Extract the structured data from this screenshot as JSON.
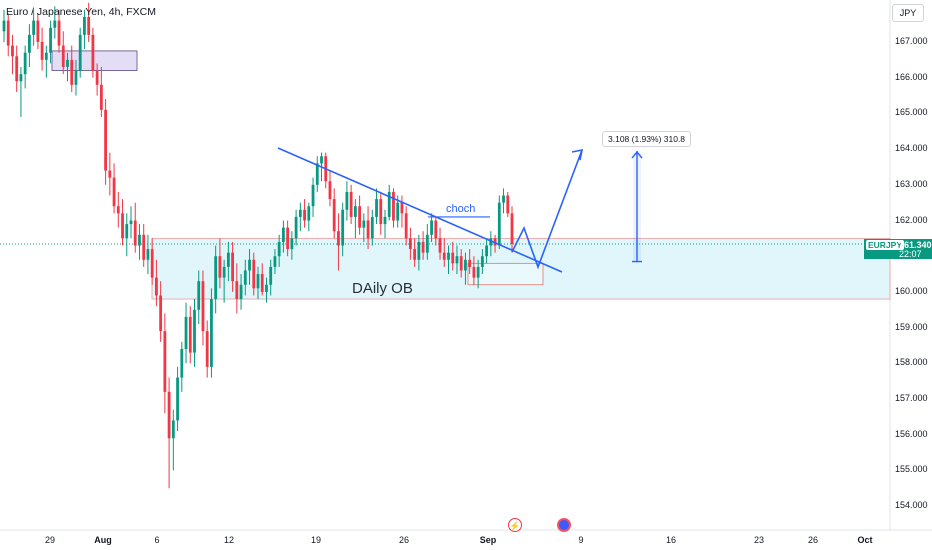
{
  "header": {
    "title": "Euro / Japanese Yen, 4h, FXCM",
    "currency": "JPY"
  },
  "chart_data": {
    "type": "candlestick",
    "x_labels": [
      "29",
      "Aug",
      "6",
      "12",
      "19",
      "26",
      "Sep",
      "9",
      "16",
      "23",
      "26",
      "Oct"
    ],
    "y_ticks": [
      "167.000",
      "166.000",
      "165.000",
      "164.000",
      "163.000",
      "162.000",
      "161.000",
      "160.000",
      "159.000",
      "158.000",
      "157.000",
      "156.000",
      "155.000",
      "154.000"
    ],
    "ylim": [
      153.88,
      168.2
    ],
    "last_price": {
      "symbol": "EURJPY",
      "value": "161.340",
      "countdown": "22:07"
    },
    "annotations": {
      "order_block": "DAily OB",
      "choch": "choch",
      "measure": "3.108 (1.93%) 310.8"
    },
    "candles": [
      [
        167.3,
        167.9,
        167.0,
        167.6
      ],
      [
        167.6,
        167.8,
        166.6,
        166.9
      ],
      [
        166.9,
        167.2,
        166.1,
        166.6
      ],
      [
        166.6,
        166.9,
        165.6,
        165.9
      ],
      [
        165.9,
        166.3,
        164.9,
        166.1
      ],
      [
        166.1,
        166.9,
        165.7,
        166.7
      ],
      [
        166.7,
        167.5,
        166.3,
        167.2
      ],
      [
        167.2,
        167.9,
        166.9,
        167.6
      ],
      [
        167.6,
        167.8,
        166.8,
        167.0
      ],
      [
        167.0,
        167.4,
        166.2,
        166.5
      ],
      [
        166.5,
        166.9,
        166.0,
        166.7
      ],
      [
        166.7,
        167.6,
        166.4,
        167.4
      ],
      [
        167.4,
        168.0,
        167.1,
        167.6
      ],
      [
        167.6,
        167.9,
        166.7,
        166.9
      ],
      [
        166.9,
        167.3,
        166.1,
        166.3
      ],
      [
        166.3,
        166.7,
        165.9,
        166.5
      ],
      [
        166.5,
        166.9,
        165.6,
        165.8
      ],
      [
        165.8,
        166.5,
        165.5,
        166.2
      ],
      [
        166.2,
        167.4,
        166.0,
        167.2
      ],
      [
        167.2,
        167.9,
        166.8,
        167.7
      ],
      [
        167.7,
        168.1,
        167.0,
        167.2
      ],
      [
        167.2,
        167.4,
        166.0,
        166.2
      ],
      [
        166.2,
        166.4,
        165.5,
        165.8
      ],
      [
        165.8,
        166.3,
        164.9,
        165.1
      ],
      [
        165.1,
        165.4,
        163.0,
        163.4
      ],
      [
        163.4,
        163.9,
        162.7,
        163.2
      ],
      [
        163.2,
        163.6,
        162.2,
        162.4
      ],
      [
        162.4,
        162.8,
        161.8,
        162.2
      ],
      [
        162.2,
        162.6,
        161.3,
        161.5
      ],
      [
        161.5,
        162.2,
        161.0,
        161.9
      ],
      [
        161.9,
        162.4,
        161.5,
        162.0
      ],
      [
        162.0,
        162.5,
        161.1,
        161.3
      ],
      [
        161.3,
        161.9,
        160.9,
        161.6
      ],
      [
        161.6,
        161.9,
        160.7,
        160.9
      ],
      [
        160.9,
        161.6,
        160.5,
        161.2
      ],
      [
        161.2,
        161.5,
        160.2,
        160.4
      ],
      [
        160.4,
        160.9,
        159.6,
        159.9
      ],
      [
        159.9,
        160.3,
        158.6,
        158.9
      ],
      [
        158.9,
        159.4,
        156.6,
        157.2
      ],
      [
        157.2,
        157.6,
        154.5,
        155.9
      ],
      [
        155.9,
        156.7,
        155.0,
        156.4
      ],
      [
        156.4,
        157.9,
        156.1,
        157.6
      ],
      [
        157.6,
        158.6,
        157.2,
        158.4
      ],
      [
        158.4,
        159.7,
        158.0,
        159.3
      ],
      [
        159.3,
        159.6,
        158.0,
        158.3
      ],
      [
        158.3,
        159.8,
        157.9,
        159.5
      ],
      [
        159.5,
        160.6,
        159.1,
        160.3
      ],
      [
        160.3,
        160.6,
        158.5,
        158.9
      ],
      [
        158.9,
        159.2,
        157.6,
        157.9
      ],
      [
        157.9,
        160.1,
        157.6,
        159.8
      ],
      [
        159.8,
        161.3,
        159.4,
        161.0
      ],
      [
        161.0,
        161.5,
        160.1,
        160.4
      ],
      [
        160.4,
        160.9,
        159.7,
        160.7
      ],
      [
        160.7,
        161.4,
        160.3,
        161.1
      ],
      [
        161.1,
        161.4,
        160.0,
        160.3
      ],
      [
        160.3,
        160.8,
        159.4,
        159.8
      ],
      [
        159.8,
        160.5,
        159.5,
        160.2
      ],
      [
        160.2,
        160.9,
        159.9,
        160.6
      ],
      [
        160.6,
        161.2,
        160.2,
        160.9
      ],
      [
        160.9,
        161.1,
        159.9,
        160.1
      ],
      [
        160.1,
        160.7,
        159.8,
        160.5
      ],
      [
        160.5,
        160.8,
        159.9,
        160.0
      ],
      [
        160.0,
        160.4,
        159.7,
        160.2
      ],
      [
        160.2,
        160.9,
        159.9,
        160.7
      ],
      [
        160.7,
        161.2,
        160.5,
        161.0
      ],
      [
        161.0,
        161.6,
        160.7,
        161.4
      ],
      [
        161.4,
        162.0,
        161.1,
        161.8
      ],
      [
        161.8,
        162.0,
        161.0,
        161.2
      ],
      [
        161.2,
        161.7,
        160.9,
        161.5
      ],
      [
        161.5,
        162.3,
        161.3,
        162.1
      ],
      [
        162.1,
        162.5,
        161.7,
        162.3
      ],
      [
        162.3,
        162.6,
        161.8,
        162.0
      ],
      [
        162.0,
        162.5,
        161.7,
        162.4
      ],
      [
        162.4,
        163.2,
        162.1,
        163.0
      ],
      [
        163.0,
        163.8,
        162.8,
        163.6
      ],
      [
        163.6,
        163.9,
        163.1,
        163.8
      ],
      [
        163.8,
        163.9,
        162.9,
        163.1
      ],
      [
        163.1,
        163.4,
        162.4,
        162.6
      ],
      [
        162.6,
        162.9,
        161.5,
        161.7
      ],
      [
        161.7,
        162.2,
        160.6,
        161.3
      ],
      [
        161.3,
        162.5,
        161.0,
        162.3
      ],
      [
        162.3,
        163.1,
        162.0,
        162.8
      ],
      [
        162.8,
        163.0,
        161.9,
        162.1
      ],
      [
        162.1,
        162.6,
        161.5,
        162.4
      ],
      [
        162.4,
        162.7,
        161.6,
        161.8
      ],
      [
        161.8,
        162.2,
        161.4,
        162.0
      ],
      [
        162.0,
        162.4,
        161.2,
        161.5
      ],
      [
        161.5,
        162.3,
        161.3,
        162.1
      ],
      [
        162.1,
        162.9,
        161.9,
        162.6
      ],
      [
        162.6,
        162.8,
        161.6,
        161.9
      ],
      [
        161.9,
        162.3,
        161.5,
        162.1
      ],
      [
        162.1,
        163.0,
        162.0,
        162.8
      ],
      [
        162.8,
        162.9,
        161.8,
        162.0
      ],
      [
        162.0,
        162.7,
        161.8,
        162.5
      ],
      [
        162.5,
        162.7,
        161.8,
        162.2
      ],
      [
        162.2,
        162.4,
        161.3,
        161.5
      ],
      [
        161.5,
        161.8,
        160.9,
        161.2
      ],
      [
        161.2,
        161.5,
        160.7,
        160.9
      ],
      [
        160.9,
        161.6,
        160.6,
        161.4
      ],
      [
        161.4,
        161.7,
        160.9,
        161.1
      ],
      [
        161.1,
        161.9,
        160.9,
        161.6
      ],
      [
        161.6,
        162.2,
        161.4,
        162.0
      ],
      [
        162.0,
        162.1,
        161.3,
        161.5
      ],
      [
        161.5,
        161.8,
        160.9,
        161.1
      ],
      [
        161.1,
        161.5,
        160.7,
        160.9
      ],
      [
        160.9,
        161.3,
        160.5,
        161.1
      ],
      [
        161.1,
        161.4,
        160.6,
        160.8
      ],
      [
        160.8,
        161.3,
        160.5,
        161.0
      ],
      [
        161.0,
        161.2,
        160.4,
        160.6
      ],
      [
        160.6,
        161.1,
        160.2,
        160.9
      ],
      [
        160.9,
        161.2,
        160.5,
        160.7
      ],
      [
        160.7,
        161.0,
        160.2,
        160.4
      ],
      [
        160.4,
        160.9,
        160.1,
        160.7
      ],
      [
        160.7,
        161.2,
        160.5,
        161.0
      ],
      [
        161.0,
        161.5,
        160.8,
        161.3
      ],
      [
        161.3,
        161.7,
        161.0,
        161.5
      ],
      [
        161.5,
        161.6,
        161.1,
        161.3
      ],
      [
        161.3,
        162.7,
        161.2,
        162.5
      ],
      [
        162.5,
        162.9,
        162.2,
        162.7
      ],
      [
        162.7,
        162.8,
        162.1,
        162.2
      ],
      [
        162.2,
        162.4,
        161.1,
        161.34
      ]
    ]
  }
}
